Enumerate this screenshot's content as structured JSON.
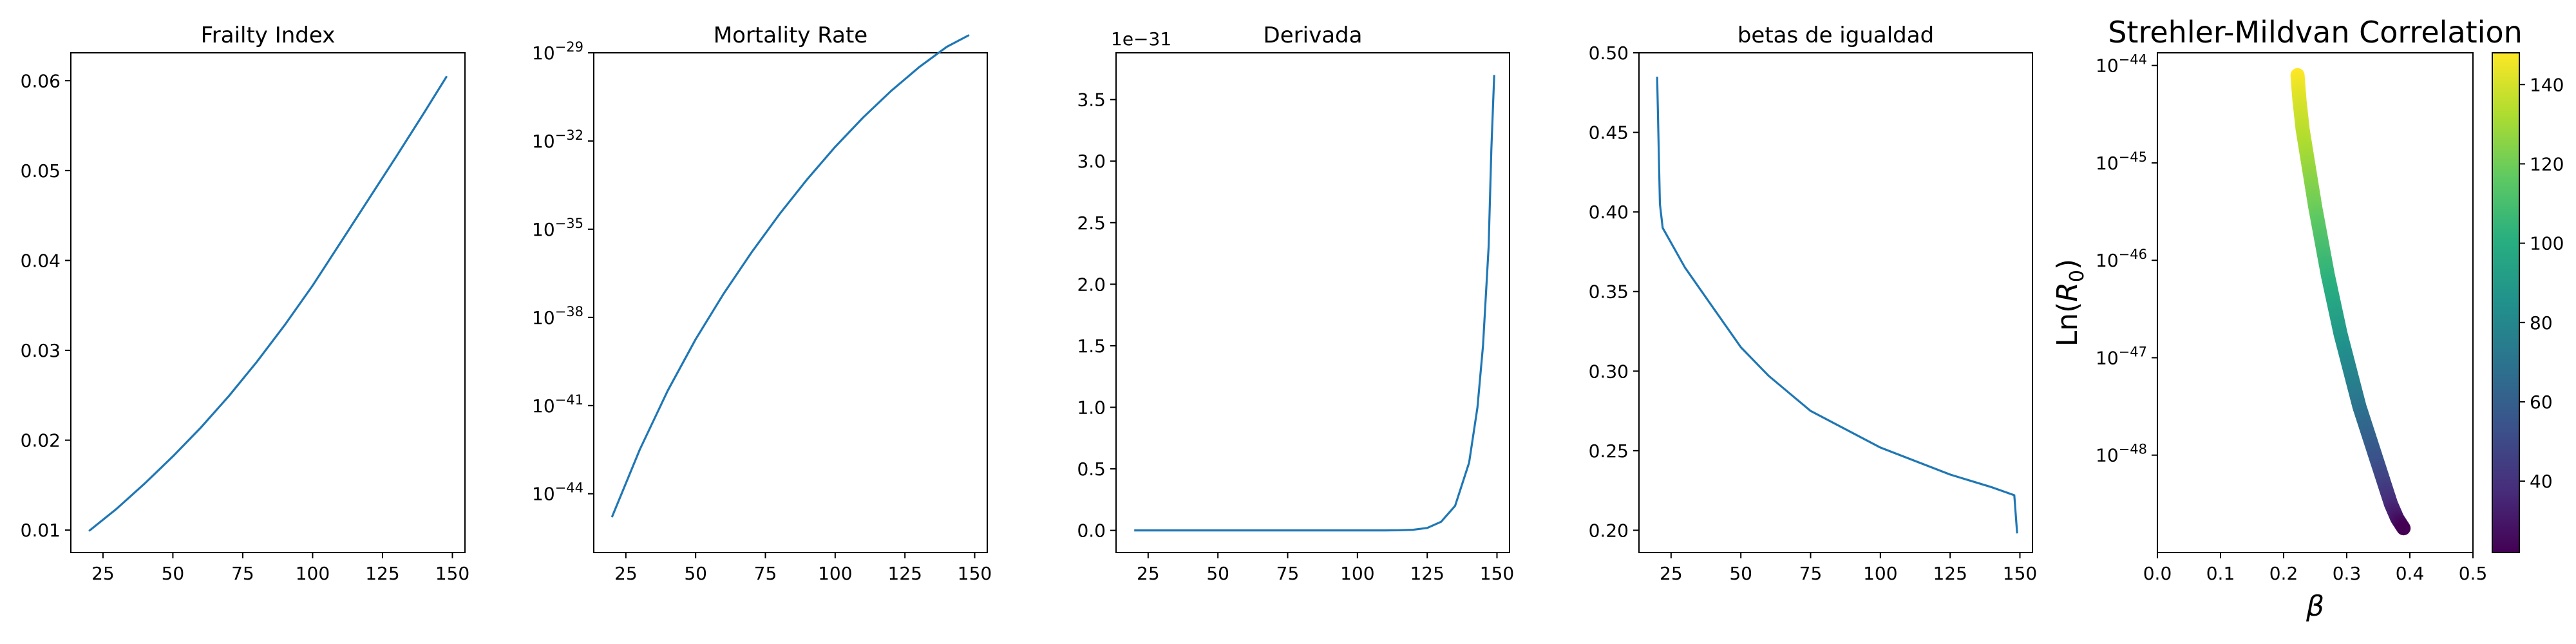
{
  "chart_data": [
    {
      "type": "line",
      "title": "Frailty Index",
      "xlim": [
        13.5,
        154.5
      ],
      "ylim": [
        0.0075,
        0.0631
      ],
      "x_ticks": [
        25,
        50,
        75,
        100,
        125,
        150
      ],
      "y_ticks": [
        0.01,
        0.02,
        0.03,
        0.04,
        0.05,
        0.06
      ],
      "series": [
        {
          "x": [
            20,
            30,
            40,
            50,
            60,
            70,
            80,
            90,
            100,
            110,
            120,
            130,
            140,
            148
          ],
          "y": [
            0.0099,
            0.0124,
            0.0152,
            0.0182,
            0.0214,
            0.0249,
            0.0287,
            0.0328,
            0.0372,
            0.042,
            0.0468,
            0.0516,
            0.0565,
            0.0605
          ]
        }
      ]
    },
    {
      "type": "line",
      "title": "Mortality Rate",
      "yscale": "log",
      "xlim": [
        13.5,
        154.5
      ],
      "ylim": [
        1e-46,
        1e-29
      ],
      "x_ticks": [
        25,
        50,
        75,
        100,
        125,
        150
      ],
      "y_tick_exponents": [
        -29,
        -32,
        -35,
        -38,
        -41,
        -44
      ],
      "series": [
        {
          "x": [
            20,
            30,
            40,
            50,
            60,
            70,
            80,
            90,
            100,
            110,
            120,
            130,
            140,
            148
          ],
          "y": [
            1.6e-45,
            3.2e-43,
            3.2e-41,
            1.8e-39,
            6.3e-38,
            1.6e-36,
            3.2e-35,
            5e-34,
            6.3e-33,
            6.3e-32,
            5e-31,
            3.2e-30,
            1.6e-29,
            4e-29
          ]
        }
      ]
    },
    {
      "type": "line",
      "title": "Derivada",
      "offset_text": "1e−31",
      "xlim": [
        13.5,
        154.5
      ],
      "ylim": [
        -0.18,
        3.88
      ],
      "x_ticks": [
        25,
        50,
        75,
        100,
        125,
        150
      ],
      "y_ticks": [
        0.0,
        0.5,
        1.0,
        1.5,
        2.0,
        2.5,
        3.0,
        3.5
      ],
      "series": [
        {
          "x": [
            20,
            40,
            60,
            80,
            100,
            110,
            115,
            120,
            125,
            130,
            135,
            140,
            143,
            145,
            147,
            148,
            149
          ],
          "y": [
            0,
            0,
            0,
            0,
            0,
            0,
            0.001,
            0.005,
            0.02,
            0.07,
            0.2,
            0.55,
            1.0,
            1.5,
            2.3,
            3.1,
            3.7
          ]
        }
      ]
    },
    {
      "type": "line",
      "title": "betas de igualdad",
      "xlim": [
        13.5,
        154.5
      ],
      "ylim": [
        0.186,
        0.5
      ],
      "x_ticks": [
        25,
        50,
        75,
        100,
        125,
        150
      ],
      "y_ticks": [
        0.2,
        0.25,
        0.3,
        0.35,
        0.4,
        0.45,
        0.5
      ],
      "series": [
        {
          "x": [
            20,
            21,
            22,
            30,
            40,
            50,
            60,
            75,
            100,
            125,
            140,
            148,
            149
          ],
          "y": [
            0.485,
            0.405,
            0.39,
            0.365,
            0.34,
            0.315,
            0.297,
            0.275,
            0.252,
            0.235,
            0.227,
            0.222,
            0.198
          ]
        }
      ]
    },
    {
      "type": "scatter",
      "title": "Strehler-Mildvan Correlation",
      "xlabel": "β",
      "ylabel_prefix": "Ln(",
      "ylabel_var": "R",
      "ylabel_sub": "0",
      "ylabel_suffix": ")",
      "yscale": "log",
      "xlim": [
        0.0,
        0.5
      ],
      "ylim_exponents": [
        -49.0,
        -43.87
      ],
      "x_ticks": [
        0.0,
        0.1,
        0.2,
        0.3,
        0.4,
        0.5
      ],
      "y_tick_exponents": [
        -44,
        -45,
        -46,
        -47,
        -48
      ],
      "series": [
        {
          "beta": [
            0.222,
            0.225,
            0.23,
            0.24,
            0.25,
            0.26,
            0.27,
            0.28,
            0.29,
            0.3,
            0.31,
            0.32,
            0.33,
            0.34,
            0.35,
            0.36,
            0.37,
            0.38,
            0.39
          ],
          "log10_R0": [
            -44.1,
            -44.35,
            -44.65,
            -45.05,
            -45.45,
            -45.8,
            -46.15,
            -46.45,
            -46.75,
            -47.0,
            -47.25,
            -47.5,
            -47.7,
            -47.9,
            -48.1,
            -48.3,
            -48.5,
            -48.65,
            -48.75
          ],
          "age": [
            148,
            142,
            136,
            128,
            120,
            112,
            104,
            97,
            90,
            83,
            77,
            71,
            65,
            59,
            53,
            46,
            38,
            30,
            22
          ]
        }
      ],
      "colorbar": {
        "colormap": "viridis",
        "range": [
          22,
          148
        ],
        "ticks": [
          40,
          60,
          80,
          100,
          120,
          140
        ]
      }
    }
  ]
}
